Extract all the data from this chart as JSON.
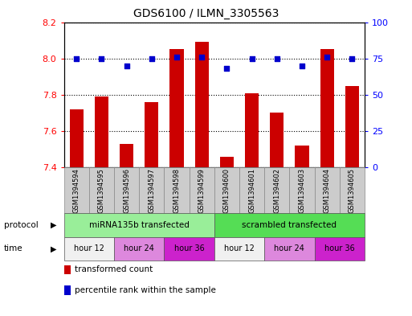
{
  "title": "GDS6100 / ILMN_3305563",
  "samples": [
    "GSM1394594",
    "GSM1394595",
    "GSM1394596",
    "GSM1394597",
    "GSM1394598",
    "GSM1394599",
    "GSM1394600",
    "GSM1394601",
    "GSM1394602",
    "GSM1394603",
    "GSM1394604",
    "GSM1394605"
  ],
  "bar_values": [
    7.72,
    7.79,
    7.53,
    7.76,
    8.05,
    8.09,
    7.46,
    7.81,
    7.7,
    7.52,
    8.05,
    7.85
  ],
  "percentile_values": [
    75,
    75,
    70,
    75,
    76,
    76,
    68,
    75,
    75,
    70,
    76,
    75
  ],
  "ylim_left": [
    7.4,
    8.2
  ],
  "ylim_right": [
    0,
    100
  ],
  "yticks_left": [
    7.4,
    7.6,
    7.8,
    8.0,
    8.2
  ],
  "yticks_right": [
    0,
    25,
    50,
    75,
    100
  ],
  "bar_color": "#cc0000",
  "dot_color": "#0000cc",
  "bar_bottom": 7.4,
  "protocol_groups": [
    {
      "label": "miRNA135b transfected",
      "start": 0,
      "end": 6,
      "color": "#99ee99"
    },
    {
      "label": "scrambled transfected",
      "start": 6,
      "end": 12,
      "color": "#55dd55"
    }
  ],
  "time_groups": [
    {
      "label": "hour 12",
      "start": 0,
      "end": 2,
      "color": "#f0f0f0"
    },
    {
      "label": "hour 24",
      "start": 2,
      "end": 4,
      "color": "#dd88dd"
    },
    {
      "label": "hour 36",
      "start": 4,
      "end": 6,
      "color": "#cc22cc"
    },
    {
      "label": "hour 12",
      "start": 6,
      "end": 8,
      "color": "#f0f0f0"
    },
    {
      "label": "hour 24",
      "start": 8,
      "end": 10,
      "color": "#dd88dd"
    },
    {
      "label": "hour 36",
      "start": 10,
      "end": 12,
      "color": "#cc22cc"
    }
  ],
  "sample_box_color": "#cccccc",
  "legend_items": [
    {
      "color": "#cc0000",
      "label": "transformed count"
    },
    {
      "color": "#0000cc",
      "label": "percentile rank within the sample"
    }
  ],
  "protocol_label": "protocol",
  "time_label": "time"
}
